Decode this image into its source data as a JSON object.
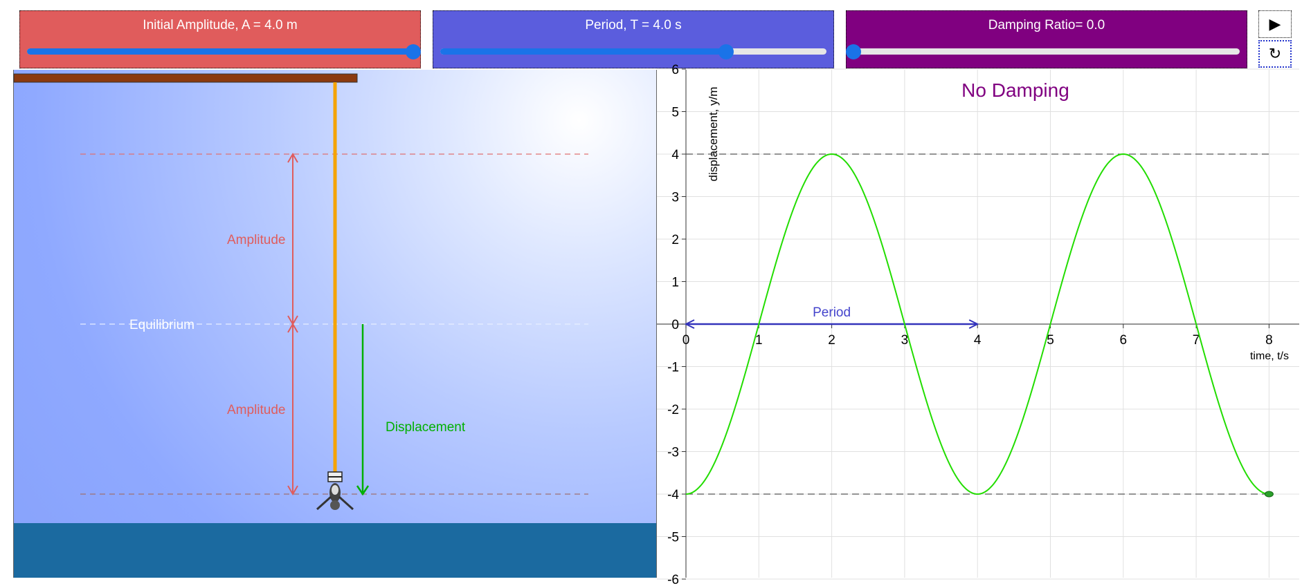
{
  "controls": {
    "amplitude": {
      "label": "Initial Amplitude, A = 4.0 m",
      "value": 4.0,
      "min": 0,
      "max": 4.0,
      "fraction": 1.0
    },
    "period": {
      "label": "Period, T = 4.0 s",
      "fraction": 0.74
    },
    "damping": {
      "label": "Damping Ratio= 0.0",
      "fraction": 0.0
    },
    "play_icon": "play-icon",
    "reset_icon": "reset-icon",
    "play_glyph": "▶",
    "reset_glyph": "↻"
  },
  "scene": {
    "amplitude_top_label": "Amplitude",
    "amplitude_bottom_label": "Amplitude",
    "equilibrium_label": "Equilibrium",
    "displacement_label": "Displacement",
    "colors": {
      "amplitude": "#e05c5c",
      "displacement": "#00b000",
      "rope": "#f5a300",
      "platform": "#8b3a0f",
      "water": "#1b6aa0"
    }
  },
  "chart_data": {
    "type": "line",
    "title": "No Damping",
    "xlabel": "time, t/s",
    "ylabel": "displacement, y/m",
    "xlim": [
      0,
      8
    ],
    "ylim": [
      -6,
      6
    ],
    "x_ticks": [
      "0",
      "1",
      "2",
      "3",
      "4",
      "5",
      "6",
      "7",
      "8"
    ],
    "y_ticks": [
      "6",
      "5",
      "4",
      "3",
      "2",
      "1",
      "0",
      "-1",
      "-2",
      "-3",
      "-4",
      "-5",
      "-6"
    ],
    "grid": true,
    "series": [
      {
        "color": "#22dd00",
        "x": [
          0,
          0.5,
          1,
          1.5,
          2,
          2.5,
          3,
          3.5,
          4,
          4.5,
          5,
          5.5,
          6,
          6.5,
          7,
          7.5,
          8
        ],
        "y": [
          -4,
          -2.83,
          0,
          2.83,
          4,
          2.83,
          0,
          -2.83,
          -4,
          -2.83,
          0,
          2.83,
          4,
          2.83,
          0,
          -2.83,
          -4
        ]
      }
    ],
    "amplitude_lines": [
      4,
      -4
    ],
    "period_annotation": {
      "label": "Period",
      "from": 0,
      "to": 4,
      "color": "#3333bb"
    },
    "current_point": {
      "x": 8,
      "y": -4
    }
  }
}
